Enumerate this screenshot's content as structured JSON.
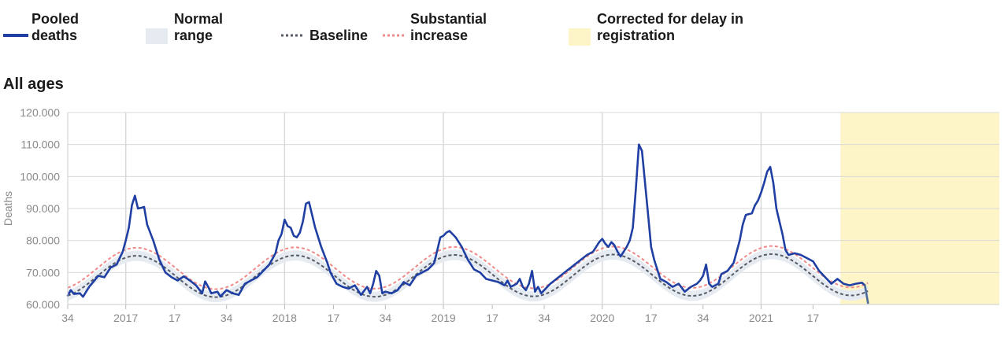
{
  "legend": {
    "pooled": "Pooled\ndeaths",
    "pooled_l1": "Pooled",
    "pooled_l2": "deaths",
    "normal_l1": "Normal",
    "normal_l2": "range",
    "baseline": "Baseline",
    "substantial_l1": "Substantial",
    "substantial_l2": "increase",
    "corrected_l1": "Corrected for delay in",
    "corrected_l2": "registration"
  },
  "section_title": "All ages",
  "colors": {
    "pooled": "#1f3fa3",
    "normal_band": "#e6ebf1",
    "baseline": "#555b66",
    "substantial": "#f08a8a",
    "corrected": "#fdf5c8",
    "grid": "#d9d9d9"
  },
  "chart_data": {
    "type": "line",
    "title": "All ages",
    "xlabel": "",
    "ylabel": "Deaths",
    "ylim": [
      60000,
      120000
    ],
    "y_ticks": [
      "60.000",
      "70.000",
      "80.000",
      "90.000",
      "100.000",
      "110.000",
      "120.000"
    ],
    "y_tick_values": [
      60000,
      70000,
      80000,
      90000,
      100000,
      110000,
      120000
    ],
    "x_range_weeks": [
      0,
      305
    ],
    "x_ticks": [
      {
        "label": "34",
        "week": 0
      },
      {
        "label": "2017",
        "week": 19,
        "major": true
      },
      {
        "label": "17",
        "week": 35
      },
      {
        "label": "34",
        "week": 52
      },
      {
        "label": "2018",
        "week": 71,
        "major": true
      },
      {
        "label": "17",
        "week": 87
      },
      {
        "label": "34",
        "week": 104
      },
      {
        "label": "2019",
        "week": 123,
        "major": true
      },
      {
        "label": "17",
        "week": 139
      },
      {
        "label": "34",
        "week": 156
      },
      {
        "label": "2020",
        "week": 175,
        "major": true
      },
      {
        "label": "17",
        "week": 191
      },
      {
        "label": "34",
        "week": 208
      },
      {
        "label": "2021",
        "week": 227,
        "major": true
      },
      {
        "label": "17",
        "week": 244
      }
    ],
    "corrected_range_weeks": [
      253,
      305
    ],
    "series": [
      {
        "name": "Pooled deaths",
        "points": [
          [
            0,
            62800
          ],
          [
            1,
            64500
          ],
          [
            2,
            63300
          ],
          [
            4,
            63500
          ],
          [
            5,
            62400
          ],
          [
            7,
            65500
          ],
          [
            9,
            67800
          ],
          [
            10,
            69000
          ],
          [
            12,
            68500
          ],
          [
            14,
            71500
          ],
          [
            16,
            72500
          ],
          [
            18,
            76500
          ],
          [
            19,
            80000
          ],
          [
            20,
            84000
          ],
          [
            21,
            91000
          ],
          [
            22,
            94000
          ],
          [
            23,
            90000
          ],
          [
            24,
            90200
          ],
          [
            25,
            90500
          ],
          [
            26,
            85000
          ],
          [
            28,
            80000
          ],
          [
            30,
            74000
          ],
          [
            32,
            70000
          ],
          [
            34,
            68500
          ],
          [
            36,
            67500
          ],
          [
            38,
            68800
          ],
          [
            40,
            67500
          ],
          [
            42,
            66000
          ],
          [
            44,
            63500
          ],
          [
            45,
            67200
          ],
          [
            46,
            65500
          ],
          [
            47,
            63500
          ],
          [
            49,
            64000
          ],
          [
            50,
            62500
          ],
          [
            52,
            64500
          ],
          [
            54,
            63500
          ],
          [
            56,
            63000
          ],
          [
            58,
            66500
          ],
          [
            60,
            67500
          ],
          [
            62,
            68500
          ],
          [
            64,
            70500
          ],
          [
            66,
            72500
          ],
          [
            68,
            76000
          ],
          [
            69,
            80000
          ],
          [
            70,
            82000
          ],
          [
            71,
            86500
          ],
          [
            72,
            84500
          ],
          [
            73,
            84000
          ],
          [
            74,
            81500
          ],
          [
            75,
            81000
          ],
          [
            76,
            82500
          ],
          [
            77,
            86000
          ],
          [
            78,
            91500
          ],
          [
            79,
            92000
          ],
          [
            80,
            88000
          ],
          [
            81,
            84000
          ],
          [
            83,
            78000
          ],
          [
            85,
            73000
          ],
          [
            86,
            70000
          ],
          [
            88,
            66500
          ],
          [
            90,
            65500
          ],
          [
            92,
            65000
          ],
          [
            94,
            66000
          ],
          [
            96,
            63000
          ],
          [
            98,
            65500
          ],
          [
            99,
            63500
          ],
          [
            100,
            66500
          ],
          [
            101,
            70500
          ],
          [
            102,
            69000
          ],
          [
            103,
            63500
          ],
          [
            104,
            64000
          ],
          [
            106,
            63500
          ],
          [
            108,
            64500
          ],
          [
            110,
            67000
          ],
          [
            112,
            66000
          ],
          [
            114,
            69000
          ],
          [
            116,
            70000
          ],
          [
            118,
            71000
          ],
          [
            120,
            73000
          ],
          [
            121,
            77000
          ],
          [
            122,
            81000
          ],
          [
            123,
            81500
          ],
          [
            124,
            82500
          ],
          [
            125,
            83000
          ],
          [
            127,
            81000
          ],
          [
            129,
            78000
          ],
          [
            131,
            74000
          ],
          [
            133,
            71000
          ],
          [
            135,
            70000
          ],
          [
            137,
            68000
          ],
          [
            139,
            67500
          ],
          [
            141,
            67000
          ],
          [
            143,
            66000
          ],
          [
            144,
            67500
          ],
          [
            145,
            65500
          ],
          [
            147,
            66500
          ],
          [
            148,
            68000
          ],
          [
            149,
            65500
          ],
          [
            150,
            64500
          ],
          [
            151,
            66500
          ],
          [
            152,
            70500
          ],
          [
            153,
            64000
          ],
          [
            154,
            65500
          ],
          [
            155,
            63500
          ],
          [
            156,
            64500
          ],
          [
            158,
            66500
          ],
          [
            160,
            68000
          ],
          [
            162,
            69500
          ],
          [
            164,
            71000
          ],
          [
            166,
            72500
          ],
          [
            168,
            74000
          ],
          [
            170,
            75500
          ],
          [
            172,
            76500
          ],
          [
            173,
            78000
          ],
          [
            174,
            79500
          ],
          [
            175,
            80500
          ],
          [
            176,
            79000
          ],
          [
            177,
            78000
          ],
          [
            178,
            79500
          ],
          [
            179,
            78500
          ],
          [
            180,
            76500
          ],
          [
            181,
            75000
          ],
          [
            182,
            76500
          ],
          [
            183,
            78000
          ],
          [
            184,
            80000
          ],
          [
            185,
            84000
          ],
          [
            186,
            96000
          ],
          [
            187,
            110000
          ],
          [
            188,
            108000
          ],
          [
            189,
            98000
          ],
          [
            190,
            88000
          ],
          [
            191,
            78000
          ],
          [
            192,
            74000
          ],
          [
            194,
            68000
          ],
          [
            196,
            67000
          ],
          [
            198,
            65500
          ],
          [
            200,
            66500
          ],
          [
            202,
            64000
          ],
          [
            204,
            65500
          ],
          [
            206,
            66500
          ],
          [
            207,
            67500
          ],
          [
            208,
            69000
          ],
          [
            209,
            72500
          ],
          [
            210,
            66500
          ],
          [
            211,
            65500
          ],
          [
            213,
            66500
          ],
          [
            214,
            69500
          ],
          [
            216,
            70500
          ],
          [
            218,
            73000
          ],
          [
            220,
            80000
          ],
          [
            221,
            85000
          ],
          [
            222,
            88000
          ],
          [
            224,
            88500
          ],
          [
            225,
            91000
          ],
          [
            226,
            92500
          ],
          [
            227,
            95000
          ],
          [
            228,
            98000
          ],
          [
            229,
            101500
          ],
          [
            230,
            103000
          ],
          [
            231,
            98000
          ],
          [
            232,
            90000
          ],
          [
            233,
            86000
          ],
          [
            234,
            82000
          ],
          [
            235,
            77000
          ],
          [
            236,
            75500
          ],
          [
            238,
            76000
          ],
          [
            240,
            75500
          ],
          [
            242,
            74500
          ],
          [
            244,
            73500
          ],
          [
            246,
            70500
          ],
          [
            248,
            68500
          ],
          [
            250,
            66500
          ],
          [
            252,
            68000
          ],
          [
            254,
            66500
          ],
          [
            256,
            66000
          ],
          [
            258,
            66500
          ],
          [
            260,
            66800
          ],
          [
            261,
            66000
          ]
        ]
      },
      {
        "name": "Pooled deaths (corrected)",
        "points": [
          [
            261,
            66000
          ],
          [
            262,
            60500
          ]
        ]
      }
    ],
    "baseline_model": {
      "mean": 69000,
      "amplitude": 6500,
      "peak_weeks": [
        22.5,
        74.5,
        126.5,
        178.5,
        230.5
      ],
      "period_weeks": 52,
      "trend_per_week": 2.5,
      "normal_band_halfwidth": 1600,
      "substantial_offset": 2500
    }
  }
}
